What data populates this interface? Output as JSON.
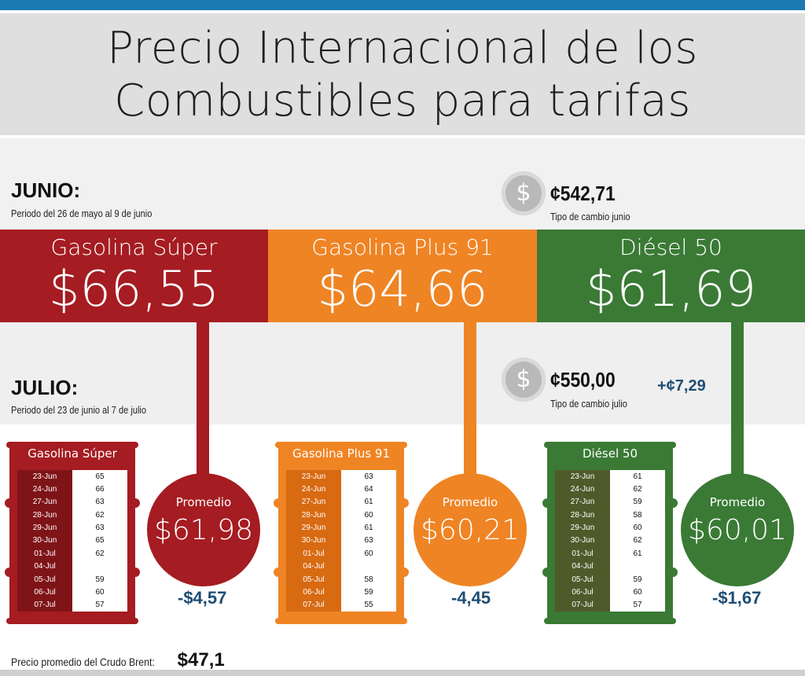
{
  "title": {
    "line1": "Precio Internacional de los",
    "line2": "Combustibles para tarifas"
  },
  "junio": {
    "heading": "JUNIO:",
    "period": "Periodo del 26 de mayo al 9 de junio",
    "exchange_rate": "¢542,71",
    "exchange_label": "Tipo de cambio junio",
    "prices": [
      {
        "name": "Gasolina Súper",
        "value": "$66,55"
      },
      {
        "name": "Gasolina Plus 91",
        "value": "$64,66"
      },
      {
        "name": "Diésel 50",
        "value": "$61,69"
      }
    ]
  },
  "julio": {
    "heading": "JULIO:",
    "period": "Periodo del 23 de junio al 7 de julio",
    "exchange_rate": "¢550,00",
    "exchange_label": "Tipo de cambio julio",
    "exchange_change": "+¢7,29"
  },
  "barrels": [
    {
      "name": "Gasolina Súper",
      "rows": [
        {
          "date": "23-Jun",
          "value": "65"
        },
        {
          "date": "24-Jun",
          "value": "66"
        },
        {
          "date": "27-Jun",
          "value": "63"
        },
        {
          "date": "28-Jun",
          "value": "62"
        },
        {
          "date": "29-Jun",
          "value": "63"
        },
        {
          "date": "30-Jun",
          "value": "65"
        },
        {
          "date": "01-Jul",
          "value": "62"
        },
        {
          "date": "04-Jul",
          "value": ""
        },
        {
          "date": "05-Jul",
          "value": "59"
        },
        {
          "date": "06-Jul",
          "value": "60"
        },
        {
          "date": "07-Jul",
          "value": "57"
        }
      ],
      "average_label": "Promedio",
      "average": "$61,98",
      "difference": "-$4,57"
    },
    {
      "name": "Gasolina Plus 91",
      "rows": [
        {
          "date": "23-Jun",
          "value": "63"
        },
        {
          "date": "24-Jun",
          "value": "64"
        },
        {
          "date": "27-Jun",
          "value": "61"
        },
        {
          "date": "28-Jun",
          "value": "60"
        },
        {
          "date": "29-Jun",
          "value": "61"
        },
        {
          "date": "30-Jun",
          "value": "63"
        },
        {
          "date": "01-Jul",
          "value": "60"
        },
        {
          "date": "04-Jul",
          "value": ""
        },
        {
          "date": "05-Jul",
          "value": "58"
        },
        {
          "date": "06-Jul",
          "value": "59"
        },
        {
          "date": "07-Jul",
          "value": "55"
        }
      ],
      "average_label": "Promedio",
      "average": "$60,21",
      "difference": "-4,45"
    },
    {
      "name": "Diésel 50",
      "rows": [
        {
          "date": "23-Jun",
          "value": "61"
        },
        {
          "date": "24-Jun",
          "value": "62"
        },
        {
          "date": "27-Jun",
          "value": "59"
        },
        {
          "date": "28-Jun",
          "value": "58"
        },
        {
          "date": "29-Jun",
          "value": "60"
        },
        {
          "date": "30-Jun",
          "value": "62"
        },
        {
          "date": "01-Jul",
          "value": "61"
        },
        {
          "date": "04-Jul",
          "value": ""
        },
        {
          "date": "05-Jul",
          "value": "59"
        },
        {
          "date": "06-Jul",
          "value": "60"
        },
        {
          "date": "07-Jul",
          "value": "57"
        }
      ],
      "average_label": "Promedio",
      "average": "$60,01",
      "difference": "-$1,67"
    }
  ],
  "brent": {
    "label": "Precio promedio del Crudo Brent:",
    "value": "$47,1"
  },
  "icons": {
    "coin": "$"
  },
  "colors": {
    "super": "#a51c22",
    "super_dark": "#7f1418",
    "plus": "#ef8424",
    "plus_dark": "#d86a12",
    "diesel": "#3a7a35",
    "diesel_dark": "#4f5a2b",
    "accent_blue": "#1c7ab3",
    "delta_text": "#1f4d73"
  }
}
